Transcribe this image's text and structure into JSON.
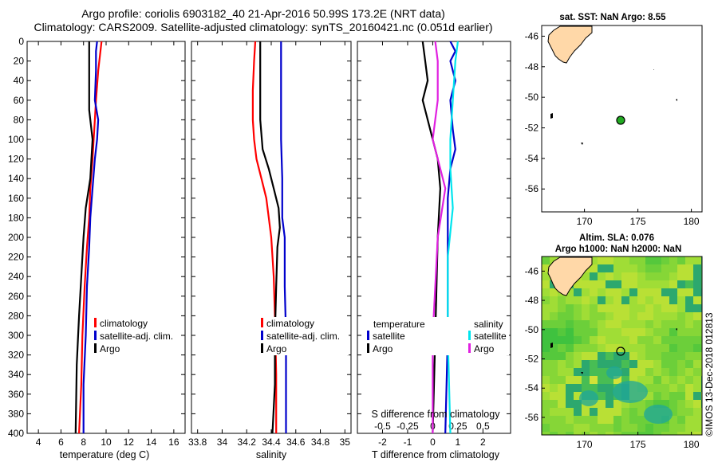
{
  "title": {
    "line1": "Argo profile: coriolis 6903182_40 21-Apr-2016 50.99S 173.2E (NRT data)",
    "line2": "Climatology: CARS2009. Satellite-adjusted climatology: synTS_20160421.nc (0.051d earlier)"
  },
  "colors": {
    "climatology": "#ff0000",
    "satellite": "#0000cc",
    "argo": "#000000",
    "sat_salinity": "#00e5ee",
    "argo_salinity": "#e020e0"
  },
  "depth_ticks": [
    "0",
    "20",
    "40",
    "60",
    "80",
    "100",
    "120",
    "140",
    "160",
    "180",
    "200",
    "220",
    "240",
    "260",
    "280",
    "300",
    "320",
    "340",
    "360",
    "380",
    "400"
  ],
  "legend": {
    "climatology": "climatology",
    "satellite_adj": "satellite-adj. clim.",
    "argo": "Argo",
    "temperature": "temperature",
    "salinity": "salinity",
    "satellite": "satellite"
  },
  "chart_data": [
    {
      "type": "line",
      "name": "temperature",
      "xlabel": "temperature (deg C)",
      "xlim": [
        3,
        17
      ],
      "xticks": [
        "4",
        "6",
        "8",
        "10",
        "12",
        "14",
        "16"
      ],
      "ylim": [
        0,
        400
      ],
      "series": [
        {
          "name": "climatology",
          "color": "#ff0000",
          "points": [
            [
              9.6,
              0
            ],
            [
              9.5,
              10
            ],
            [
              9.3,
              30
            ],
            [
              9.1,
              60
            ],
            [
              9.0,
              80
            ],
            [
              8.9,
              100
            ],
            [
              8.8,
              120
            ],
            [
              8.6,
              150
            ],
            [
              8.5,
              180
            ],
            [
              8.3,
              210
            ],
            [
              8.1,
              250
            ],
            [
              7.9,
              300
            ],
            [
              7.8,
              350
            ],
            [
              7.6,
              400
            ]
          ]
        },
        {
          "name": "satellite-adj. clim.",
          "color": "#0000cc",
          "points": [
            [
              9.2,
              0
            ],
            [
              9.1,
              10
            ],
            [
              9.1,
              30
            ],
            [
              9.0,
              60
            ],
            [
              9.3,
              80
            ],
            [
              9.2,
              100
            ],
            [
              9.0,
              120
            ],
            [
              8.8,
              150
            ],
            [
              8.6,
              180
            ],
            [
              8.5,
              210
            ],
            [
              8.3,
              250
            ],
            [
              8.2,
              300
            ],
            [
              8.0,
              350
            ],
            [
              8.0,
              400
            ]
          ]
        },
        {
          "name": "Argo",
          "color": "#000000",
          "points": [
            [
              8.5,
              0
            ],
            [
              8.5,
              20
            ],
            [
              8.5,
              40
            ],
            [
              8.5,
              70
            ],
            [
              8.6,
              80
            ],
            [
              8.8,
              100
            ],
            [
              8.7,
              120
            ],
            [
              8.6,
              140
            ],
            [
              8.2,
              170
            ],
            [
              8.0,
              200
            ],
            [
              7.8,
              240
            ],
            [
              7.6,
              280
            ],
            [
              7.4,
              330
            ],
            [
              7.3,
              400
            ]
          ]
        }
      ]
    },
    {
      "type": "line",
      "name": "salinity",
      "xlabel": "salinity",
      "xlim": [
        33.75,
        35.05
      ],
      "xticks": [
        "33.8",
        "34",
        "34.2",
        "34.4",
        "34.6",
        "34.8",
        "35"
      ],
      "ylim": [
        0,
        400
      ],
      "series": [
        {
          "name": "climatology",
          "color": "#ff0000",
          "points": [
            [
              34.27,
              0
            ],
            [
              34.26,
              20
            ],
            [
              34.25,
              50
            ],
            [
              34.25,
              80
            ],
            [
              34.26,
              100
            ],
            [
              34.28,
              120
            ],
            [
              34.32,
              140
            ],
            [
              34.36,
              160
            ],
            [
              34.38,
              180
            ],
            [
              34.4,
              200
            ],
            [
              34.42,
              240
            ],
            [
              34.43,
              280
            ],
            [
              34.44,
              340
            ],
            [
              34.44,
              400
            ]
          ]
        },
        {
          "name": "satellite-adj. clim.",
          "color": "#0000cc",
          "points": [
            [
              34.48,
              0
            ],
            [
              34.48,
              30
            ],
            [
              34.48,
              70
            ],
            [
              34.48,
              100
            ],
            [
              34.49,
              140
            ],
            [
              34.49,
              180
            ],
            [
              34.51,
              200
            ],
            [
              34.51,
              250
            ],
            [
              34.52,
              300
            ],
            [
              34.52,
              350
            ],
            [
              34.52,
              400
            ]
          ]
        },
        {
          "name": "Argo",
          "color": "#000000",
          "points": [
            [
              34.31,
              0
            ],
            [
              34.31,
              30
            ],
            [
              34.31,
              80
            ],
            [
              34.33,
              110
            ],
            [
              34.38,
              130
            ],
            [
              34.42,
              150
            ],
            [
              34.46,
              170
            ],
            [
              34.47,
              190
            ],
            [
              34.45,
              210
            ],
            [
              34.44,
              250
            ],
            [
              34.43,
              300
            ],
            [
              34.43,
              350
            ],
            [
              34.41,
              400
            ]
          ]
        }
      ]
    },
    {
      "type": "line",
      "name": "difference",
      "xlabel": "T difference from climatology",
      "xlim": [
        -3,
        3.1
      ],
      "xticks": [
        "-2",
        "-1",
        "0",
        "1",
        "2"
      ],
      "xlabel2": "S difference from climatology",
      "xticks2": [
        "-0.5",
        "-0.25",
        "0",
        "0.25",
        "0.5"
      ],
      "ylim": [
        0,
        400
      ],
      "series": [
        {
          "name": "temperature satellite",
          "color": "#0000cc",
          "points": [
            [
              0.7,
              0
            ],
            [
              0.9,
              10
            ],
            [
              0.7,
              20
            ],
            [
              0.9,
              40
            ],
            [
              0.7,
              60
            ],
            [
              0.8,
              90
            ],
            [
              0.9,
              110
            ],
            [
              0.7,
              130
            ],
            [
              0.6,
              160
            ],
            [
              0.6,
              200
            ],
            [
              0.6,
              300
            ],
            [
              0.5,
              400
            ]
          ]
        },
        {
          "name": "temperature Argo",
          "color": "#000000",
          "points": [
            [
              -0.4,
              0
            ],
            [
              -0.3,
              20
            ],
            [
              -0.2,
              40
            ],
            [
              -0.4,
              60
            ],
            [
              -0.2,
              80
            ],
            [
              0.0,
              100
            ],
            [
              0.2,
              120
            ],
            [
              0.3,
              150
            ],
            [
              0.2,
              200
            ],
            [
              0.1,
              300
            ],
            [
              0.0,
              400
            ]
          ]
        },
        {
          "name": "salinity satellite",
          "color": "#00e5ee",
          "points": [
            [
              1.0,
              0
            ],
            [
              0.9,
              20
            ],
            [
              0.8,
              60
            ],
            [
              0.7,
              100
            ],
            [
              0.7,
              130
            ],
            [
              0.8,
              170
            ],
            [
              0.6,
              220
            ],
            [
              0.6,
              300
            ],
            [
              0.7,
              400
            ]
          ]
        },
        {
          "name": "salinity Argo",
          "color": "#e020e0",
          "points": [
            [
              0.1,
              0
            ],
            [
              0.2,
              20
            ],
            [
              0.2,
              60
            ],
            [
              0.0,
              100
            ],
            [
              0.3,
              130
            ],
            [
              0.5,
              150
            ],
            [
              0.2,
              200
            ],
            [
              0.1,
              250
            ],
            [
              0.0,
              300
            ],
            [
              0.0,
              400
            ]
          ]
        }
      ]
    },
    {
      "type": "scatter",
      "name": "sst-map",
      "title": "sat. SST: NaN Argo: 8.55",
      "xlim": [
        166,
        181
      ],
      "ylim": [
        -57.5,
        -45
      ],
      "xticks": [
        "170",
        "175",
        "180"
      ],
      "yticks": [
        "-46",
        "-48",
        "-50",
        "-52",
        "-54",
        "-56"
      ],
      "points": [
        {
          "lon": 173.2,
          "lat": -50.99,
          "label": "Argo"
        }
      ]
    },
    {
      "type": "heatmap",
      "name": "sla-map",
      "title_line1": "Altim. SLA: 0.076",
      "title_line2": "Argo h1000: NaN h2000: NaN",
      "xlim": [
        166,
        181
      ],
      "ylim": [
        -57,
        -45
      ],
      "xticks": [
        "170",
        "175",
        "180"
      ],
      "yticks": [
        "-46",
        "-48",
        "-50",
        "-52",
        "-54",
        "-56"
      ],
      "points": [
        {
          "lon": 173.2,
          "lat": -50.99,
          "label": "Argo"
        }
      ]
    }
  ],
  "credit": "©IMOS 13-Dec-2018 012813"
}
